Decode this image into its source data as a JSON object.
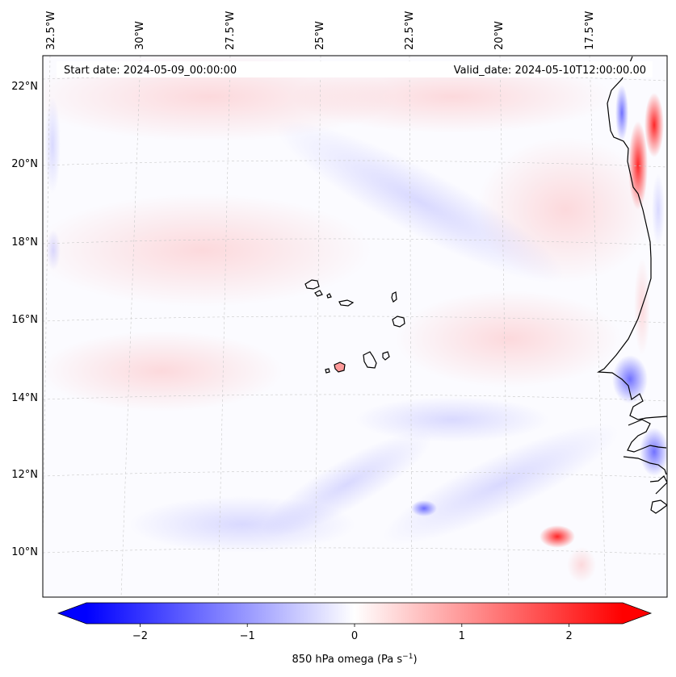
{
  "header": {
    "start_date": "Start date: 2024-05-09_00:00:00",
    "valid_date": "Valid_date: 2024-05-10T12:00:00.00"
  },
  "longitude_labels": [
    "32.5°W",
    "30°W",
    "27.5°W",
    "25°W",
    "22.5°W",
    "20°W",
    "17.5°W"
  ],
  "latitude_labels": [
    "22°N",
    "20°N",
    "18°N",
    "16°N",
    "14°N",
    "12°N",
    "10°N"
  ],
  "colorbar": {
    "ticks": [
      "−2",
      "−1",
      "0",
      "1",
      "2"
    ],
    "tick_values": [
      -2,
      -1,
      0,
      1,
      2
    ],
    "range": [
      -2.5,
      2.5
    ],
    "label": "850 hPa omega (Pa s",
    "label_exp": "−1",
    "label_close": ")",
    "colors": {
      "negative": "#0000ff",
      "zero": "#ffffff",
      "positive": "#ff0000"
    }
  }
}
